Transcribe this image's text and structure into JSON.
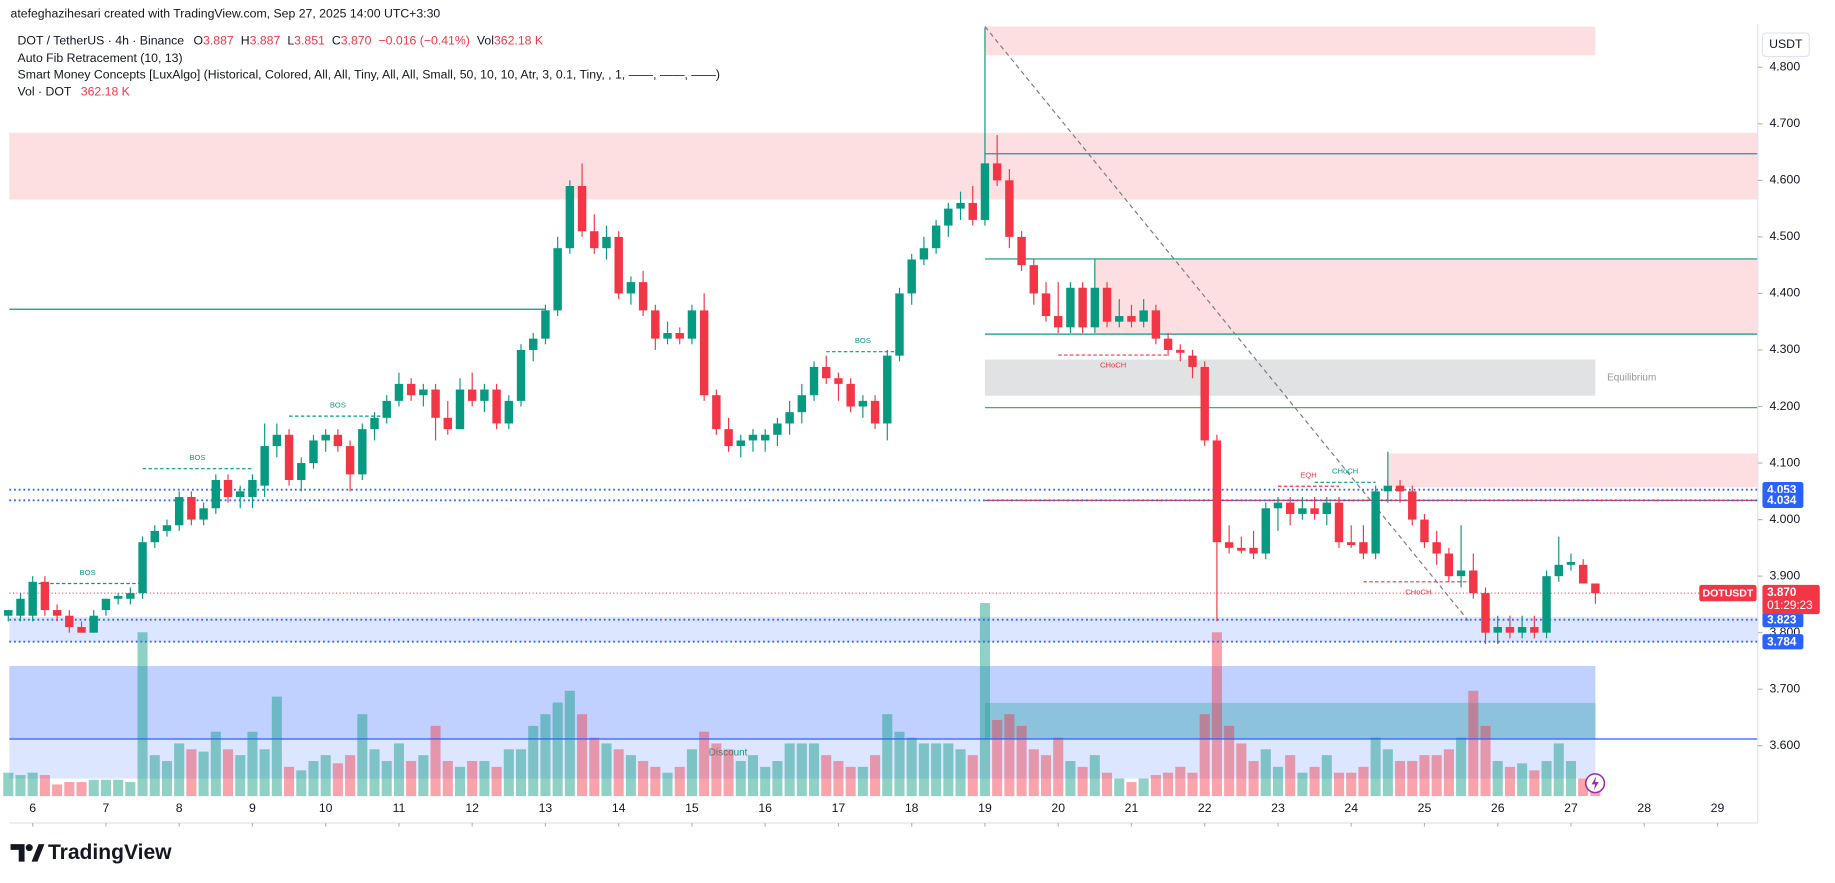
{
  "chart_data": {
    "type": "candlestick",
    "header": {
      "credit": "atefeghazihesari created with TradingView.com, Sep 27, 2025 14:00 UTC+3:30",
      "symbol": "DOT / TetherUS · 4h · Binance",
      "ohlc": [
        {
          "key": "O",
          "value": "3.887"
        },
        {
          "key": "H",
          "value": "3.887"
        },
        {
          "key": "L",
          "value": "3.851"
        },
        {
          "key": "C",
          "value": "3.870"
        }
      ],
      "change": "−0.016 (−0.41%)",
      "vol_key": "Vol",
      "vol_value": "362.18 K",
      "indicators": [
        "Auto Fib Retracement (10, 13)",
        "Smart Money Concepts [LuxAlgo] (Historical, Colored, All, All, Tiny, All, All, Small, 50, 10, 10, Atr, 3, 0.1, Tiny, , 1, ——, ——, ——)"
      ],
      "volume_indicator": {
        "name": "Vol · DOT",
        "value": "362.18 K"
      }
    },
    "currency": "USDT",
    "brand": "TradingView",
    "up_color": "#089981",
    "down_color": "#f23645",
    "ylim": [
      3.511,
      4.877
    ],
    "yticks": [
      {
        "value": 3.6,
        "label": "3.600"
      },
      {
        "value": 3.7,
        "label": "3.700"
      },
      {
        "value": 3.8,
        "label": "3.800"
      },
      {
        "value": 3.9,
        "label": "3.900"
      },
      {
        "value": 4.0,
        "label": "4.000"
      },
      {
        "value": 4.1,
        "label": "4.100"
      },
      {
        "value": 4.2,
        "label": "4.200"
      },
      {
        "value": 4.3,
        "label": "4.300"
      },
      {
        "value": 4.4,
        "label": "4.400"
      },
      {
        "value": 4.5,
        "label": "4.500"
      },
      {
        "value": 4.6,
        "label": "4.600"
      },
      {
        "value": 4.7,
        "label": "4.700"
      },
      {
        "value": 4.8,
        "label": "4.800"
      }
    ],
    "xlim": [
      0.09,
      143.3
    ],
    "xticks": [
      {
        "value": 2,
        "label": "6"
      },
      {
        "value": 8,
        "label": "7"
      },
      {
        "value": 14,
        "label": "8"
      },
      {
        "value": 20,
        "label": "9"
      },
      {
        "value": 26,
        "label": "10"
      },
      {
        "value": 32,
        "label": "11"
      },
      {
        "value": 38,
        "label": "12"
      },
      {
        "value": 44,
        "label": "13"
      },
      {
        "value": 50,
        "label": "14"
      },
      {
        "value": 56,
        "label": "15"
      },
      {
        "value": 62,
        "label": "16"
      },
      {
        "value": 68,
        "label": "17"
      },
      {
        "value": 74,
        "label": "18"
      },
      {
        "value": 80,
        "label": "19"
      },
      {
        "value": 86,
        "label": "20"
      },
      {
        "value": 92,
        "label": "21"
      },
      {
        "value": 98,
        "label": "22"
      },
      {
        "value": 104,
        "label": "23"
      },
      {
        "value": 110,
        "label": "24"
      },
      {
        "value": 116,
        "label": "25"
      },
      {
        "value": 122,
        "label": "26"
      },
      {
        "value": 128,
        "label": "27"
      },
      {
        "value": 134,
        "label": "28"
      },
      {
        "value": 140,
        "label": "29"
      }
    ],
    "candles": [
      [
        3.83,
        3.84,
        3.82,
        3.84
      ],
      [
        3.83,
        3.87,
        3.82,
        3.86
      ],
      [
        3.83,
        3.9,
        3.82,
        3.89
      ],
      [
        3.89,
        3.9,
        3.83,
        3.84
      ],
      [
        3.84,
        3.85,
        3.82,
        3.83
      ],
      [
        3.83,
        3.84,
        3.8,
        3.81
      ],
      [
        3.81,
        3.82,
        3.8,
        3.8
      ],
      [
        3.8,
        3.84,
        3.8,
        3.83
      ],
      [
        3.84,
        3.86,
        3.83,
        3.86
      ],
      [
        3.86,
        3.87,
        3.85,
        3.865
      ],
      [
        3.86,
        3.88,
        3.85,
        3.87
      ],
      [
        3.87,
        3.97,
        3.86,
        3.96
      ],
      [
        3.96,
        3.99,
        3.95,
        3.98
      ],
      [
        3.98,
        4.0,
        3.97,
        3.99
      ],
      [
        3.99,
        4.05,
        3.98,
        4.04
      ],
      [
        4.04,
        4.05,
        3.99,
        4.0
      ],
      [
        4.0,
        4.03,
        3.99,
        4.02
      ],
      [
        4.02,
        4.08,
        4.01,
        4.07
      ],
      [
        4.07,
        4.08,
        4.03,
        4.04
      ],
      [
        4.04,
        4.06,
        4.02,
        4.05
      ],
      [
        4.04,
        4.08,
        4.02,
        4.07
      ],
      [
        4.06,
        4.17,
        4.04,
        4.13
      ],
      [
        4.13,
        4.17,
        4.11,
        4.15
      ],
      [
        4.15,
        4.16,
        4.06,
        4.07
      ],
      [
        4.07,
        4.11,
        4.05,
        4.1
      ],
      [
        4.1,
        4.15,
        4.09,
        4.14
      ],
      [
        4.14,
        4.16,
        4.12,
        4.15
      ],
      [
        4.15,
        4.16,
        4.12,
        4.13
      ],
      [
        4.13,
        4.14,
        4.05,
        4.08
      ],
      [
        4.08,
        4.17,
        4.07,
        4.16
      ],
      [
        4.16,
        4.19,
        4.14,
        4.18
      ],
      [
        4.18,
        4.22,
        4.17,
        4.21
      ],
      [
        4.21,
        4.26,
        4.2,
        4.24
      ],
      [
        4.24,
        4.25,
        4.21,
        4.22
      ],
      [
        4.22,
        4.24,
        4.2,
        4.23
      ],
      [
        4.23,
        4.24,
        4.14,
        4.18
      ],
      [
        4.18,
        4.21,
        4.15,
        4.16
      ],
      [
        4.16,
        4.25,
        4.16,
        4.23
      ],
      [
        4.23,
        4.26,
        4.2,
        4.21
      ],
      [
        4.21,
        4.24,
        4.19,
        4.23
      ],
      [
        4.23,
        4.24,
        4.16,
        4.17
      ],
      [
        4.17,
        4.22,
        4.16,
        4.21
      ],
      [
        4.21,
        4.31,
        4.2,
        4.3
      ],
      [
        4.3,
        4.33,
        4.28,
        4.32
      ],
      [
        4.32,
        4.38,
        4.31,
        4.37
      ],
      [
        4.37,
        4.5,
        4.36,
        4.48
      ],
      [
        4.48,
        4.6,
        4.47,
        4.59
      ],
      [
        4.59,
        4.63,
        4.5,
        4.51
      ],
      [
        4.51,
        4.54,
        4.47,
        4.48
      ],
      [
        4.48,
        4.52,
        4.46,
        4.5
      ],
      [
        4.5,
        4.51,
        4.39,
        4.4
      ],
      [
        4.4,
        4.43,
        4.38,
        4.42
      ],
      [
        4.42,
        4.44,
        4.36,
        4.37
      ],
      [
        4.37,
        4.38,
        4.3,
        4.32
      ],
      [
        4.32,
        4.35,
        4.31,
        4.33
      ],
      [
        4.33,
        4.34,
        4.31,
        4.32
      ],
      [
        4.32,
        4.38,
        4.31,
        4.37
      ],
      [
        4.37,
        4.4,
        4.21,
        4.22
      ],
      [
        4.22,
        4.23,
        4.15,
        4.16
      ],
      [
        4.16,
        4.18,
        4.12,
        4.13
      ],
      [
        4.13,
        4.15,
        4.11,
        4.14
      ],
      [
        4.14,
        4.16,
        4.12,
        4.15
      ],
      [
        4.14,
        4.16,
        4.12,
        4.15
      ],
      [
        4.15,
        4.18,
        4.13,
        4.17
      ],
      [
        4.17,
        4.21,
        4.15,
        4.19
      ],
      [
        4.19,
        4.24,
        4.17,
        4.22
      ],
      [
        4.22,
        4.28,
        4.21,
        4.27
      ],
      [
        4.27,
        4.29,
        4.24,
        4.25
      ],
      [
        4.25,
        4.26,
        4.21,
        4.24
      ],
      [
        4.24,
        4.25,
        4.19,
        4.2
      ],
      [
        4.2,
        4.22,
        4.18,
        4.21
      ],
      [
        4.21,
        4.22,
        4.16,
        4.17
      ],
      [
        4.17,
        4.3,
        4.14,
        4.29
      ],
      [
        4.29,
        4.41,
        4.28,
        4.4
      ],
      [
        4.4,
        4.47,
        4.38,
        4.46
      ],
      [
        4.46,
        4.5,
        4.45,
        4.48
      ],
      [
        4.48,
        4.53,
        4.47,
        4.52
      ],
      [
        4.52,
        4.56,
        4.5,
        4.55
      ],
      [
        4.55,
        4.58,
        4.53,
        4.56
      ],
      [
        4.56,
        4.59,
        4.52,
        4.53
      ],
      [
        4.53,
        4.87,
        4.52,
        4.63
      ],
      [
        4.63,
        4.68,
        4.59,
        4.6
      ],
      [
        4.6,
        4.62,
        4.48,
        4.5
      ],
      [
        4.5,
        4.51,
        4.44,
        4.45
      ],
      [
        4.45,
        4.46,
        4.38,
        4.4
      ],
      [
        4.4,
        4.42,
        4.35,
        4.36
      ],
      [
        4.36,
        4.42,
        4.33,
        4.34
      ],
      [
        4.34,
        4.42,
        4.33,
        4.41
      ],
      [
        4.41,
        4.42,
        4.33,
        4.34
      ],
      [
        4.34,
        4.46,
        4.33,
        4.41
      ],
      [
        4.41,
        4.42,
        4.34,
        4.35
      ],
      [
        4.35,
        4.39,
        4.34,
        4.36
      ],
      [
        4.36,
        4.38,
        4.34,
        4.35
      ],
      [
        4.35,
        4.39,
        4.34,
        4.37
      ],
      [
        4.37,
        4.38,
        4.31,
        4.32
      ],
      [
        4.32,
        4.33,
        4.29,
        4.3
      ],
      [
        4.3,
        4.31,
        4.28,
        4.295
      ],
      [
        4.29,
        4.3,
        4.25,
        4.27
      ],
      [
        4.27,
        4.28,
        4.13,
        4.14
      ],
      [
        4.14,
        4.15,
        3.82,
        3.96
      ],
      [
        3.96,
        3.99,
        3.94,
        3.95
      ],
      [
        3.95,
        3.97,
        3.94,
        3.945
      ],
      [
        3.95,
        3.98,
        3.93,
        3.94
      ],
      [
        3.94,
        4.03,
        3.93,
        4.02
      ],
      [
        4.02,
        4.04,
        3.98,
        4.03
      ],
      [
        4.03,
        4.04,
        3.99,
        4.01
      ],
      [
        4.01,
        4.04,
        4.0,
        4.02
      ],
      [
        4.02,
        4.04,
        4.0,
        4.01
      ],
      [
        4.01,
        4.04,
        3.99,
        4.03
      ],
      [
        4.03,
        4.04,
        3.95,
        3.96
      ],
      [
        3.96,
        3.99,
        3.95,
        3.955
      ],
      [
        3.96,
        3.99,
        3.93,
        3.94
      ],
      [
        3.94,
        4.06,
        3.93,
        4.05
      ],
      [
        4.05,
        4.12,
        4.03,
        4.06
      ],
      [
        4.06,
        4.07,
        4.03,
        4.05
      ],
      [
        4.05,
        4.06,
        3.99,
        4.0
      ],
      [
        4.0,
        4.01,
        3.95,
        3.96
      ],
      [
        3.96,
        3.98,
        3.92,
        3.94
      ],
      [
        3.94,
        3.95,
        3.89,
        3.9
      ],
      [
        3.9,
        3.99,
        3.88,
        3.91
      ],
      [
        3.91,
        3.94,
        3.86,
        3.87
      ],
      [
        3.87,
        3.88,
        3.78,
        3.8
      ],
      [
        3.8,
        3.83,
        3.78,
        3.81
      ],
      [
        3.81,
        3.83,
        3.79,
        3.8
      ],
      [
        3.8,
        3.83,
        3.79,
        3.81
      ],
      [
        3.81,
        3.83,
        3.79,
        3.8
      ],
      [
        3.8,
        3.91,
        3.79,
        3.9
      ],
      [
        3.9,
        3.97,
        3.89,
        3.92
      ],
      [
        3.92,
        3.94,
        3.91,
        3.925
      ],
      [
        3.92,
        3.93,
        3.89,
        3.887
      ],
      [
        3.887,
        3.887,
        3.851,
        3.87
      ]
    ],
    "volume": [
      520,
      468,
      520,
      468,
      260,
      312,
      312,
      364,
      364,
      364,
      312,
      3640,
      910,
      780,
      1170,
      1040,
      988,
      1430,
      1040,
      910,
      1430,
      1040,
      2210,
      650,
      572,
      780,
      910,
      728,
      910,
      1820,
      1040,
      780,
      1170,
      780,
      910,
      1560,
      780,
      650,
      780,
      780,
      650,
      1040,
      1040,
      1560,
      1820,
      2080,
      2340,
      1820,
      1300,
      1170,
      1040,
      910,
      780,
      650,
      520,
      650,
      1040,
      1430,
      1170,
      1040,
      780,
      910,
      650,
      780,
      1170,
      1170,
      1170,
      910,
      780,
      650,
      650,
      910,
      1820,
      1430,
      1300,
      1170,
      1170,
      1170,
      1040,
      910,
      4290,
      1690,
      1820,
      1560,
      1040,
      910,
      1300,
      780,
      650,
      910,
      520,
      390,
      312,
      390,
      468,
      520,
      650,
      520,
      1820,
      3640,
      1560,
      1170,
      780,
      1040,
      650,
      910,
      520,
      650,
      910,
      520,
      520,
      650,
      1300,
      1040,
      780,
      780,
      910,
      910,
      1040,
      1300,
      2340,
      1560,
      780,
      650,
      728,
      572,
      780,
      1170,
      780,
      390,
      362.18
    ],
    "zones": [
      {
        "from": 80,
        "to": 130,
        "top": 4.872,
        "bottom": 4.821,
        "color": "#f23645"
      },
      {
        "from": 0.09,
        "to": 143.3,
        "top": 4.684,
        "bottom": 4.566,
        "color": "#f23645"
      },
      {
        "from": 89,
        "to": 143.3,
        "top": 4.461,
        "bottom": 4.328,
        "color": "#f23645"
      },
      {
        "from": 80,
        "to": 130,
        "top": 4.283,
        "bottom": 4.219,
        "color": "#787b86",
        "label": "Equilibrium"
      },
      {
        "from": 113,
        "to": 143.3,
        "top": 4.117,
        "bottom": 4.057,
        "color": "#f23645"
      },
      {
        "from": 0.09,
        "to": 143.3,
        "top": 3.828,
        "bottom": 3.784,
        "color": "#2962ff"
      },
      {
        "from": 0.09,
        "to": 130,
        "top": 3.741,
        "bottom": 3.542,
        "color": "#2962ff",
        "label": "Discount"
      },
      {
        "from": 0.09,
        "to": 130,
        "top": 3.741,
        "bottom": 3.612,
        "color": "#2962ff"
      },
      {
        "from": 80,
        "to": 130,
        "top": 3.676,
        "bottom": 3.612,
        "color": "#089981"
      }
    ],
    "lines": [
      {
        "from": 0.09,
        "to": 44,
        "value": 4.372,
        "color": "#089981"
      },
      {
        "from": 80,
        "to": 143.3,
        "value": 4.647,
        "color": "#2a8fb5"
      },
      {
        "from": 80,
        "to": 143.3,
        "value": 4.461,
        "color": "#089981"
      },
      {
        "from": 80,
        "to": 143.3,
        "value": 4.328,
        "color": "#089981"
      },
      {
        "from": 80,
        "to": 143.3,
        "value": 4.198,
        "color": "#4caf50"
      },
      {
        "from": 80,
        "to": 143.3,
        "value": 4.034,
        "color": "#f23645"
      },
      {
        "from": 0.09,
        "to": 143.3,
        "value": 3.612,
        "color": "#2962ff"
      }
    ],
    "trendline": {
      "from": [
        80,
        4.872
      ],
      "to": [
        119.6,
        3.821
      ]
    },
    "structures": [
      {
        "label": "BOS",
        "value": 3.887,
        "from": 2,
        "to": 11,
        "color": "#089981"
      },
      {
        "label": "BOS",
        "value": 4.09,
        "from": 11,
        "to": 20,
        "color": "#089981"
      },
      {
        "label": "BOS",
        "value": 4.183,
        "from": 23,
        "to": 31,
        "color": "#089981"
      },
      {
        "label": "BOS",
        "value": 4.297,
        "from": 67,
        "to": 73,
        "color": "#089981"
      },
      {
        "label": "CHoCH",
        "value": 4.291,
        "from": 86,
        "to": 95,
        "color": "#f23645"
      },
      {
        "label": "EQH",
        "value": 4.059,
        "from": 104,
        "to": 109,
        "color": "#f23645"
      },
      {
        "label": "CHoCH",
        "value": 4.066,
        "from": 107,
        "to": 112,
        "color": "#089981"
      },
      {
        "label": "CHoCH",
        "value": 3.89,
        "from": 111,
        "to": 120,
        "color": "#f23645"
      }
    ],
    "price_tags": [
      {
        "value": 4.053,
        "label": "4.053",
        "color": "#2962ff"
      },
      {
        "value": 4.034,
        "label": "4.034",
        "color": "#2962ff"
      },
      {
        "value": 3.823,
        "label": "3.823",
        "color": "#2962ff"
      },
      {
        "value": 3.784,
        "label": "3.784",
        "color": "#2962ff"
      }
    ],
    "last_price": {
      "symbol": "DOTUSDT",
      "value": 3.87,
      "label": "3.870",
      "countdown": "01:29:23",
      "color": "#f23645"
    }
  }
}
